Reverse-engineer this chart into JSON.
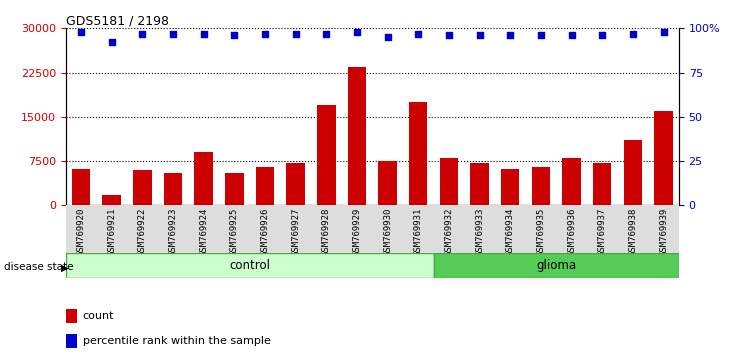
{
  "title": "GDS5181 / 2198",
  "samples": [
    "GSM769920",
    "GSM769921",
    "GSM769922",
    "GSM769923",
    "GSM769924",
    "GSM769925",
    "GSM769926",
    "GSM769927",
    "GSM769928",
    "GSM769929",
    "GSM769930",
    "GSM769931",
    "GSM769932",
    "GSM769933",
    "GSM769934",
    "GSM769935",
    "GSM769936",
    "GSM769937",
    "GSM769938",
    "GSM769939"
  ],
  "counts": [
    6200,
    1800,
    6000,
    5500,
    9000,
    5500,
    6500,
    7200,
    17000,
    23500,
    7500,
    17500,
    8000,
    7200,
    6200,
    6500,
    8000,
    7200,
    11000,
    16000
  ],
  "percentile_ranks": [
    98,
    92,
    97,
    97,
    97,
    96,
    97,
    97,
    97,
    98,
    95,
    97,
    96,
    96,
    96,
    96,
    96,
    96,
    97,
    98
  ],
  "control_count": 12,
  "glioma_count": 8,
  "bar_color": "#cc0000",
  "dot_color": "#0000cc",
  "control_bg": "#ccffcc",
  "glioma_bg": "#55cc55",
  "ylim_left": [
    0,
    30000
  ],
  "ylim_right": [
    0,
    100
  ],
  "yticks_left": [
    0,
    7500,
    15000,
    22500,
    30000
  ],
  "yticks_right": [
    0,
    25,
    50,
    75,
    100
  ],
  "legend_count_label": "count",
  "legend_pct_label": "percentile rank within the sample",
  "control_label": "control",
  "glioma_label": "glioma",
  "disease_state_label": "disease state"
}
